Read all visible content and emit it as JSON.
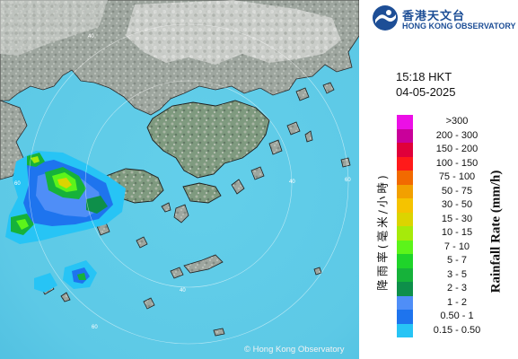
{
  "header": {
    "logo_chinese": "香港天文台",
    "logo_english": "HONG KONG OBSERVATORY"
  },
  "timestamp": {
    "time": "15:18 HKT",
    "date": "04-05-2025"
  },
  "legend": {
    "title_english": "Rainfall Rate (mm/h)",
    "title_chinese": "降雨率(毫米/小時)",
    "items": [
      {
        "label": ">300",
        "color": "#ec0fe6"
      },
      {
        "label": "200 - 300",
        "color": "#c9009a"
      },
      {
        "label": "150 - 200",
        "color": "#e0003a"
      },
      {
        "label": "100 - 150",
        "color": "#ff1a1a"
      },
      {
        "label": "75 - 100",
        "color": "#f26a00"
      },
      {
        "label": "50 - 75",
        "color": "#f2a000"
      },
      {
        "label": "30 - 50",
        "color": "#f5c300"
      },
      {
        "label": "15 - 30",
        "color": "#dcd400"
      },
      {
        "label": "10 - 15",
        "color": "#a6ea0a"
      },
      {
        "label": "7 - 10",
        "color": "#5cf41a"
      },
      {
        "label": "5 - 7",
        "color": "#1fd42a"
      },
      {
        "label": "3 - 5",
        "color": "#16b23a"
      },
      {
        "label": "2 - 3",
        "color": "#0e8f4a"
      },
      {
        "label": "1 - 2",
        "color": "#4f8ef7"
      },
      {
        "label": "0.50 - 1",
        "color": "#1e74ee"
      },
      {
        "label": "0.15 - 0.50",
        "color": "#27c4f5"
      }
    ]
  },
  "map": {
    "range_ring_labels": [
      "40",
      "60",
      "40",
      "60",
      "40",
      "60"
    ],
    "copyright": "© Hong Kong Observatory",
    "sea_color": "#6fd3ea",
    "land_color": "#9aa39b"
  }
}
